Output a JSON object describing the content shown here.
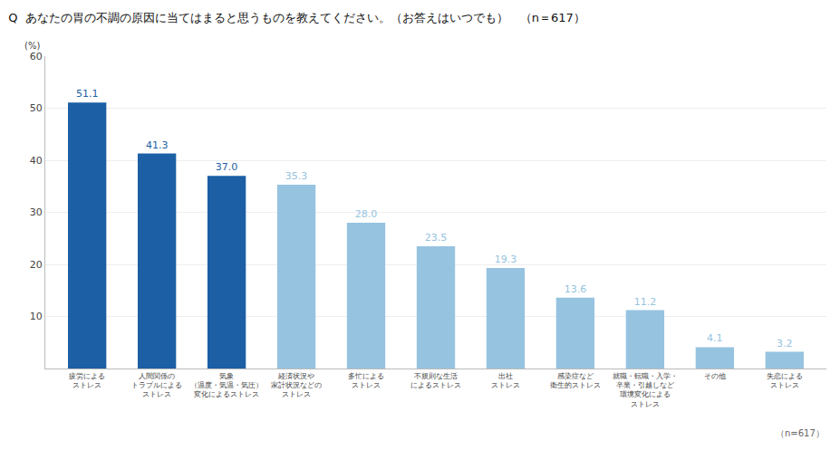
{
  "chart_data": {
    "type": "bar",
    "title": "Q  あなたの胃の不調の原因に当てはまると思うものを教えてください。（お答えはいつでも）　（n＝617）",
    "ylabel": "(%)",
    "annotations": [
      "（n=617）"
    ],
    "categories": [
      "疲労による\nストレス",
      "人間関係の\nトラブルによる\nストレス",
      "気象\n（温度・気温・気圧）\n変化によるストレス",
      "経済状況や\n家計状況などの\nストレス",
      "多忙による\nストレス",
      "不規則な生活\nによるストレス",
      "出社\nストレス",
      "感染症など\n衛生的ストレス",
      "就職・転職・入学・\n卒業・引越しなど\n環境変化による\nストレス",
      "その他",
      "失恋による\nストレス"
    ],
    "values": [
      51.1,
      41.3,
      37.0,
      35.3,
      28.0,
      23.5,
      19.3,
      13.6,
      11.2,
      4.1,
      3.2
    ],
    "value_labels": [
      "51.1",
      "41.3",
      "37.0",
      "35.3",
      "28.0",
      "23.5",
      "19.3",
      "13.6",
      "11.2",
      "4.1",
      "3.2"
    ],
    "colors": [
      "#1c5fa5",
      "#1c5fa5",
      "#1c5fa5",
      "#96c3e0",
      "#96c3e0",
      "#96c3e0",
      "#96c3e0",
      "#96c3e0",
      "#96c3e0",
      "#96c3e0",
      "#96c3e0"
    ],
    "ylim": [
      0,
      60
    ],
    "yticks": [
      10,
      20,
      30,
      40,
      50,
      60
    ],
    "grid": true,
    "data_labels": true
  }
}
